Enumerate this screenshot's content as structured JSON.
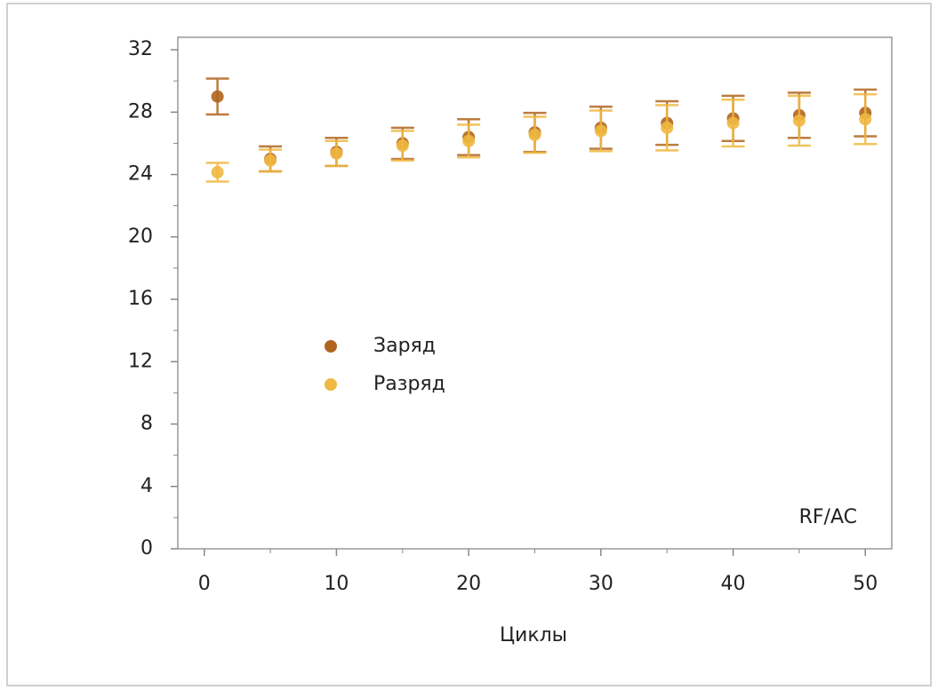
{
  "chart_data": {
    "type": "scatter",
    "xlabel": "Циклы",
    "annotation": "RF/AC",
    "xlim": [
      -2,
      52
    ],
    "xticks": [
      0,
      10,
      20,
      30,
      40,
      50
    ],
    "ylim": [
      0,
      32.8
    ],
    "yticks": [
      0,
      4,
      8,
      12,
      16,
      20,
      24,
      28,
      32
    ],
    "legend": "center-left",
    "series": [
      {
        "name": "Заряд",
        "color": "#b0651f",
        "x": [
          1,
          5,
          10,
          15,
          20,
          25,
          30,
          35,
          40,
          45,
          50
        ],
        "values": [
          29.0,
          25.0,
          25.45,
          26.0,
          26.4,
          26.7,
          27.0,
          27.3,
          27.6,
          27.8,
          27.95
        ],
        "error": [
          1.15,
          0.8,
          0.9,
          1.0,
          1.15,
          1.25,
          1.35,
          1.4,
          1.45,
          1.45,
          1.5
        ]
      },
      {
        "name": "Разряд",
        "color": "#f0b840",
        "x": [
          1,
          5,
          10,
          15,
          20,
          25,
          30,
          35,
          40,
          45,
          50
        ],
        "values": [
          24.15,
          24.9,
          25.35,
          25.85,
          26.15,
          26.55,
          26.8,
          27.0,
          27.3,
          27.45,
          27.55
        ],
        "error": [
          0.6,
          0.7,
          0.8,
          0.95,
          1.05,
          1.15,
          1.3,
          1.45,
          1.5,
          1.6,
          1.6
        ]
      }
    ]
  }
}
